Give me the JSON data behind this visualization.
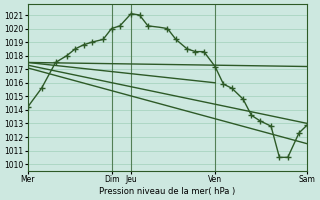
{
  "background_color": "#cde8e0",
  "grid_color": "#a8d4c0",
  "line_color": "#2d5a27",
  "xlabel": "Pression niveau de la mer( hPa )",
  "ylim": [
    1009.5,
    1021.8
  ],
  "yticks": [
    1010,
    1011,
    1012,
    1013,
    1014,
    1015,
    1016,
    1017,
    1018,
    1019,
    1020,
    1021
  ],
  "xtick_positions": [
    0,
    3.0,
    3.7,
    6.7,
    10.0
  ],
  "xtick_labels": [
    "Mer",
    "Dim",
    "Jeu",
    "Ven",
    "Sam"
  ],
  "vline_positions": [
    3.0,
    3.7,
    6.7
  ],
  "line1_x": [
    0,
    0.5,
    1.0,
    1.4,
    1.7,
    2.0,
    2.3,
    2.7,
    3.0,
    3.3,
    3.7,
    4.0,
    4.3,
    4.7,
    5.0,
    5.3,
    5.7,
    6.0,
    6.3,
    6.7,
    7.0,
    7.3,
    7.7,
    8.0,
    8.3,
    8.7,
    9.0,
    9.3,
    9.7,
    10.0
  ],
  "line1_y": [
    1014.2,
    1015.6,
    1017.5,
    1018.0,
    1018.5,
    1018.8,
    1019.0,
    1019.2,
    1020.0,
    1020.2,
    1021.1,
    1021.0,
    1020.2,
    1020.1,
    1020.0,
    1019.2,
    1018.5,
    1018.3,
    1018.3,
    1017.2,
    1015.9,
    1015.6,
    1014.8,
    1013.6,
    1013.2,
    1012.8,
    1010.5,
    1010.5,
    1012.3,
    1012.9
  ],
  "line1_marker_x": [
    0,
    0.5,
    1.0,
    1.4,
    1.7,
    2.0,
    2.3,
    2.7,
    3.0,
    3.3,
    3.7,
    4.0,
    4.3,
    5.0,
    5.3,
    5.7,
    6.0,
    6.3,
    6.7,
    7.0,
    7.3,
    7.7,
    8.0,
    8.3,
    8.7,
    9.0,
    9.3,
    9.7,
    10.0
  ],
  "line1_marker_y": [
    1014.2,
    1015.6,
    1017.5,
    1018.0,
    1018.5,
    1018.8,
    1019.0,
    1019.2,
    1020.0,
    1020.2,
    1021.1,
    1021.0,
    1020.2,
    1020.0,
    1019.2,
    1018.5,
    1018.3,
    1018.3,
    1017.2,
    1015.9,
    1015.6,
    1014.8,
    1013.6,
    1013.2,
    1012.8,
    1010.5,
    1010.5,
    1012.3,
    1012.9
  ],
  "line2_x": [
    0,
    10.0
  ],
  "line2_y": [
    1017.5,
    1017.2
  ],
  "line3_x": [
    0,
    6.7
  ],
  "line3_y": [
    1017.5,
    1016.0
  ],
  "line4_x": [
    0,
    10.0
  ],
  "line4_y": [
    1017.3,
    1013.0
  ],
  "line5_x": [
    0,
    10.0
  ],
  "line5_y": [
    1017.1,
    1011.5
  ],
  "xlim": [
    0,
    10.0
  ]
}
